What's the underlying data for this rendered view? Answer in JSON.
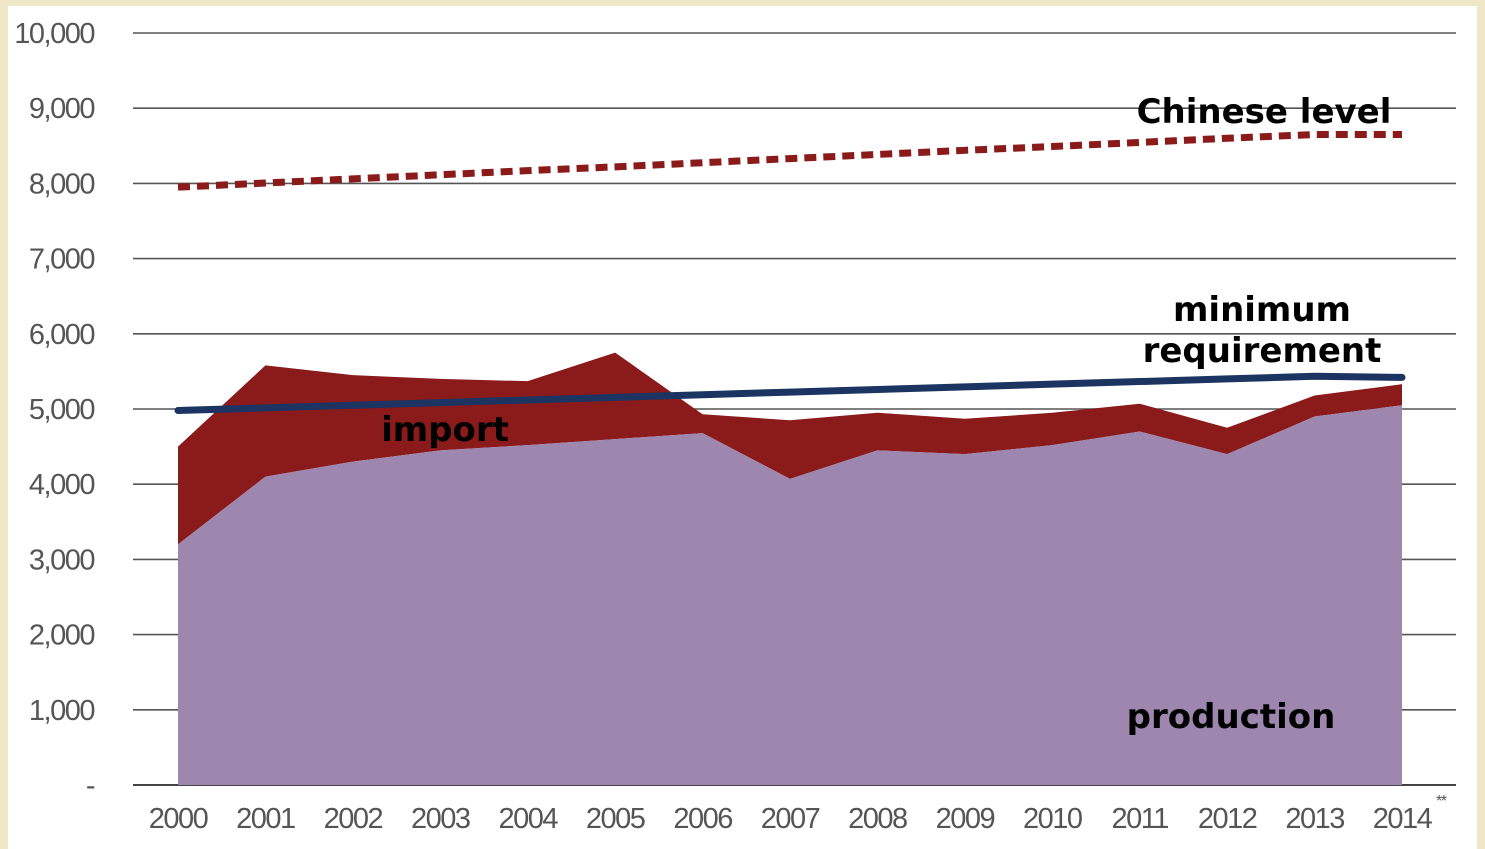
{
  "chart_data": {
    "type": "area",
    "categories": [
      "2000",
      "2001",
      "2002",
      "2003",
      "2004",
      "2005",
      "2006",
      "2007",
      "2008",
      "2009",
      "2010",
      "2011",
      "2012",
      "2013",
      "2014"
    ],
    "series": [
      {
        "name": "production",
        "kind": "area",
        "color": "#9d87ae",
        "values": [
          3200,
          4100,
          4300,
          4450,
          4520,
          4600,
          4680,
          4070,
          4450,
          4400,
          4520,
          4700,
          4400,
          4900,
          5050
        ]
      },
      {
        "name": "import",
        "kind": "area-stacked-top",
        "color": "#8b1a1a",
        "values": [
          1300,
          1480,
          1150,
          950,
          850,
          1150,
          250,
          780,
          500,
          470,
          430,
          370,
          350,
          280,
          280
        ]
      },
      {
        "name": "minimum requirement",
        "kind": "line",
        "color": "#1b3461",
        "values": [
          4980,
          5015,
          5050,
          5085,
          5120,
          5155,
          5190,
          5225,
          5260,
          5295,
          5330,
          5365,
          5400,
          5435,
          5420
        ]
      },
      {
        "name": "Chinese level",
        "kind": "dashed-line",
        "color": "#8b1a1a",
        "values": [
          7950,
          8005,
          8060,
          8115,
          8170,
          8220,
          8275,
          8330,
          8385,
          8440,
          8490,
          8545,
          8600,
          8650,
          8650
        ]
      }
    ],
    "y_ticks": [
      "-",
      "1,000",
      "2,000",
      "3,000",
      "4,000",
      "5,000",
      "6,000",
      "7,000",
      "8,000",
      "9,000",
      "10,000"
    ],
    "x_ticks": [
      "2000",
      "2001",
      "2002",
      "2003",
      "2004",
      "2005",
      "2006",
      "2007",
      "2008",
      "2009",
      "2010",
      "2011",
      "2012",
      "2013",
      "2014"
    ],
    "x_tick_suffix": "**",
    "ylim": [
      0,
      10000
    ],
    "grid": true,
    "annotations": {
      "chinese_level": "Chinese level",
      "minimum_requirement_line1": "minimum",
      "minimum_requirement_line2": "requirement",
      "import": "import",
      "production": "production"
    },
    "title": "",
    "xlabel": "",
    "ylabel": ""
  }
}
